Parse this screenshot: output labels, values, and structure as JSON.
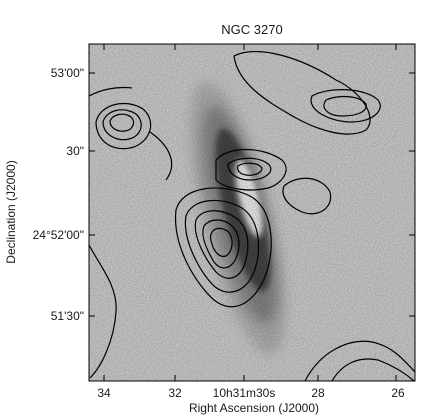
{
  "figure": {
    "title": "NGC 3270",
    "xlabel": "Right Ascension (J2000)",
    "ylabel": "Declination (J2000)",
    "x_ticks": [
      {
        "value": 34,
        "label": "34"
      },
      {
        "value": 32,
        "label": "32"
      },
      {
        "value": 30,
        "label": "10h31m30s"
      },
      {
        "value": 28,
        "label": "28"
      },
      {
        "value": 26,
        "label": "26"
      }
    ],
    "y_ticks": [
      {
        "value": 60,
        "label": "53'00\""
      },
      {
        "value": 30,
        "label": "30\""
      },
      {
        "value": 0,
        "label": "24°52'00\""
      },
      {
        "value": -30,
        "label": "51'30\""
      }
    ]
  }
}
